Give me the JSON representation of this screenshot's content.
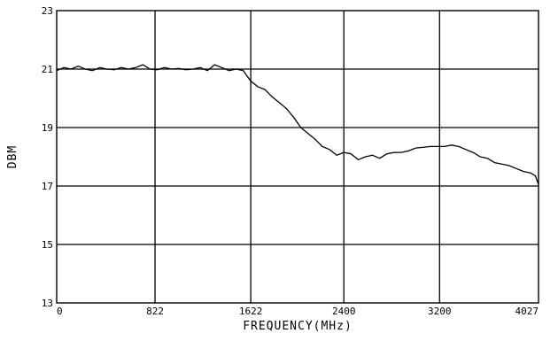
{
  "chart_data": {
    "type": "line",
    "title": "",
    "xlabel": "FREQUENCY(MHz)",
    "ylabel": "DBM",
    "xlim": [
      0,
      4027
    ],
    "ylim": [
      13,
      23
    ],
    "x_ticks": [
      0,
      822,
      1622,
      2400,
      3200,
      4027
    ],
    "x_tick_labels": [
      "0",
      "822",
      "1622",
      "2400",
      "3200",
      "4027"
    ],
    "y_ticks": [
      13,
      15,
      17,
      19,
      21,
      23
    ],
    "y_tick_labels": [
      "13",
      "15",
      "17",
      "19",
      "21",
      "23"
    ],
    "grid": true,
    "legend": "none",
    "line_color": "#000000",
    "series": [
      {
        "x": [
          0,
          60,
          120,
          180,
          240,
          300,
          360,
          420,
          480,
          540,
          600,
          660,
          720,
          780,
          840,
          900,
          960,
          1020,
          1080,
          1140,
          1200,
          1260,
          1320,
          1380,
          1440,
          1500,
          1560,
          1620,
          1680,
          1740,
          1800,
          1860,
          1920,
          1980,
          2040,
          2100,
          2160,
          2220,
          2280,
          2340,
          2400,
          2460,
          2520,
          2580,
          2640,
          2700,
          2760,
          2820,
          2880,
          2940,
          3000,
          3060,
          3120,
          3180,
          3240,
          3300,
          3360,
          3420,
          3480,
          3540,
          3600,
          3660,
          3720,
          3780,
          3840,
          3900,
          3960,
          4000,
          4027
        ],
        "y": [
          20.95,
          21.05,
          21.0,
          21.1,
          21.0,
          20.95,
          21.05,
          21.0,
          20.98,
          21.05,
          21.0,
          21.05,
          21.15,
          21.0,
          20.98,
          21.05,
          21.0,
          21.02,
          20.98,
          21.0,
          21.05,
          20.95,
          21.15,
          21.05,
          20.95,
          21.0,
          20.95,
          20.6,
          20.4,
          20.3,
          20.05,
          19.85,
          19.65,
          19.35,
          19.0,
          18.8,
          18.6,
          18.35,
          18.25,
          18.05,
          18.15,
          18.1,
          17.9,
          18.0,
          18.05,
          17.95,
          18.1,
          18.15,
          18.15,
          18.2,
          18.3,
          18.32,
          18.35,
          18.35,
          18.35,
          18.4,
          18.35,
          18.25,
          18.15,
          18.0,
          17.95,
          17.8,
          17.75,
          17.7,
          17.6,
          17.5,
          17.45,
          17.35,
          17.05
        ]
      }
    ]
  }
}
